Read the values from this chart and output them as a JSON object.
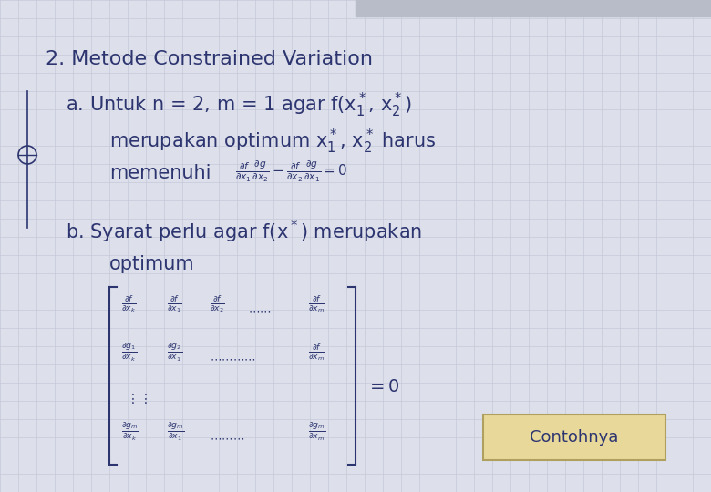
{
  "background_color": "#dde0ea",
  "grid_color": "#c5c8d8",
  "text_color": "#2d3570",
  "title": "2. Metode Constrained Variation",
  "contohnya": "Contohnya",
  "contohnya_bg": "#e8d89a",
  "contohnya_border": "#b0a060",
  "fig_width": 7.8,
  "fig_height": 5.4,
  "dpi": 100
}
